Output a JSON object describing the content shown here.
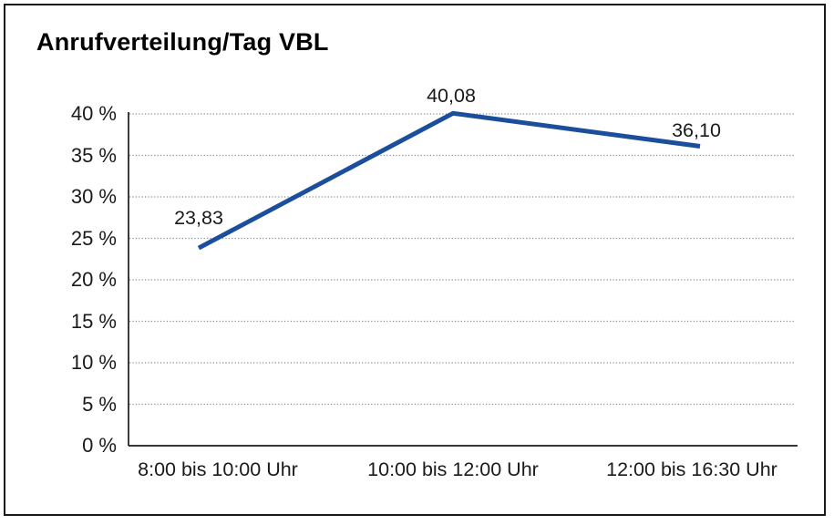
{
  "page": {
    "background": "#ffffff",
    "border_color": "#1a1a1a"
  },
  "chart_data": {
    "type": "line",
    "title": "Anrufverteilung/Tag VBL",
    "categories": [
      "8:00 bis 10:00 Uhr",
      "10:00 bis 12:00 Uhr",
      "12:00 bis 16:30 Uhr"
    ],
    "series": [
      {
        "values": [
          23.83,
          40.08,
          36.1
        ]
      }
    ],
    "data_labels": [
      "23,83",
      "40,08",
      "36,10"
    ],
    "xlabel": "",
    "ylabel": "",
    "ylim": [
      0,
      40
    ],
    "ytick_step": 5,
    "ytick_labels": [
      "0 %",
      "5 %",
      "10 %",
      "15 %",
      "20 %",
      "25 %",
      "30 %",
      "35 %",
      "40 %"
    ],
    "grid": "horizontal-dotted",
    "legend": "none",
    "line_color": "#1b4f9c",
    "axis_color": "#1a1a1a",
    "gridline_color": "#8a8a8a",
    "text_color": "#1a1a1a"
  }
}
